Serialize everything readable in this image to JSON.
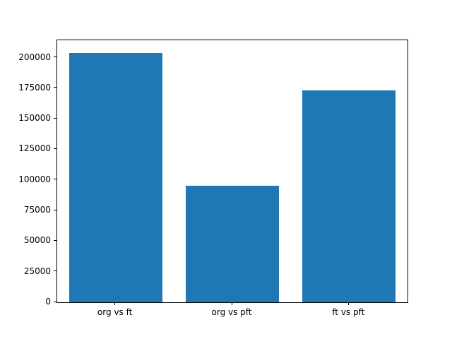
{
  "chart_data": {
    "type": "bar",
    "categories": [
      "org vs ft",
      "org vs pft",
      "ft vs pft"
    ],
    "values": [
      204000,
      95000,
      173000
    ],
    "title": "",
    "xlabel": "",
    "ylabel": "",
    "ylim": [
      0,
      214200
    ],
    "yticks": [
      0,
      25000,
      50000,
      75000,
      100000,
      125000,
      150000,
      175000,
      200000
    ],
    "bar_color": "#1f77b4",
    "grid": false,
    "legend_position": "none"
  }
}
